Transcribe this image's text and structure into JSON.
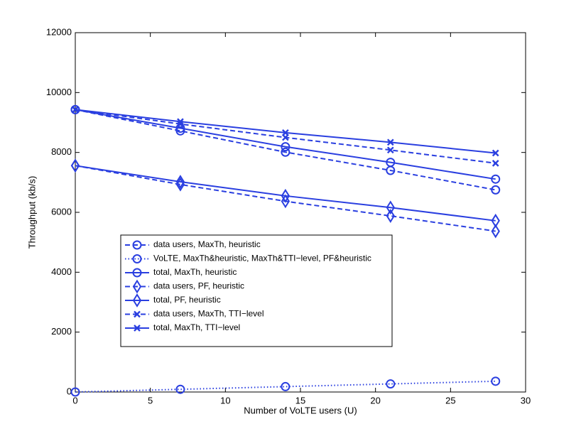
{
  "chart_data": {
    "type": "line",
    "xlabel": "Number of VoLTE users (U)",
    "ylabel": "Throughput (kb/s)",
    "x": [
      0,
      7,
      14,
      21,
      28
    ],
    "xlim": [
      0,
      30
    ],
    "xticks": [
      0,
      5,
      10,
      15,
      20,
      25,
      30
    ],
    "ylim": [
      0,
      12000
    ],
    "yticks": [
      0,
      2000,
      4000,
      6000,
      8000,
      10000,
      12000
    ],
    "grid": false,
    "legend": "lower left",
    "series": [
      {
        "name": "data users, MaxTh, heuristic",
        "color": "#2a3fe0",
        "marker": "o",
        "linestyle": "dashed",
        "values": [
          9430,
          8720,
          8010,
          7400,
          6750
        ]
      },
      {
        "name": "VoLTE, MaxTh&heuristic, MaxTh&TTI−level, PF&heuristic",
        "color": "#2a3fe0",
        "marker": "o",
        "linestyle": "dotted",
        "values": [
          0,
          90,
          180,
          270,
          360
        ]
      },
      {
        "name": "total, MaxTh, heuristic",
        "color": "#2a3fe0",
        "marker": "o",
        "linestyle": "solid",
        "values": [
          9430,
          8810,
          8190,
          7670,
          7110
        ]
      },
      {
        "name": "data users, PF, heuristic",
        "color": "#2a3fe0",
        "marker": "d",
        "linestyle": "dashed",
        "values": [
          7560,
          6930,
          6370,
          5880,
          5370
        ]
      },
      {
        "name": "total, PF, heuristic",
        "color": "#2a3fe0",
        "marker": "d",
        "linestyle": "solid",
        "values": [
          7560,
          7020,
          6550,
          6160,
          5720
        ]
      },
      {
        "name": "data users, MaxTh, TTI−level",
        "color": "#2a3fe0",
        "marker": "x",
        "linestyle": "dashed",
        "values": [
          9430,
          8950,
          8500,
          8080,
          7640
        ]
      },
      {
        "name": "total, MaxTh, TTI−level",
        "color": "#2a3fe0",
        "marker": "x",
        "linestyle": "solid",
        "values": [
          9430,
          9030,
          8660,
          8340,
          7980
        ]
      }
    ]
  }
}
